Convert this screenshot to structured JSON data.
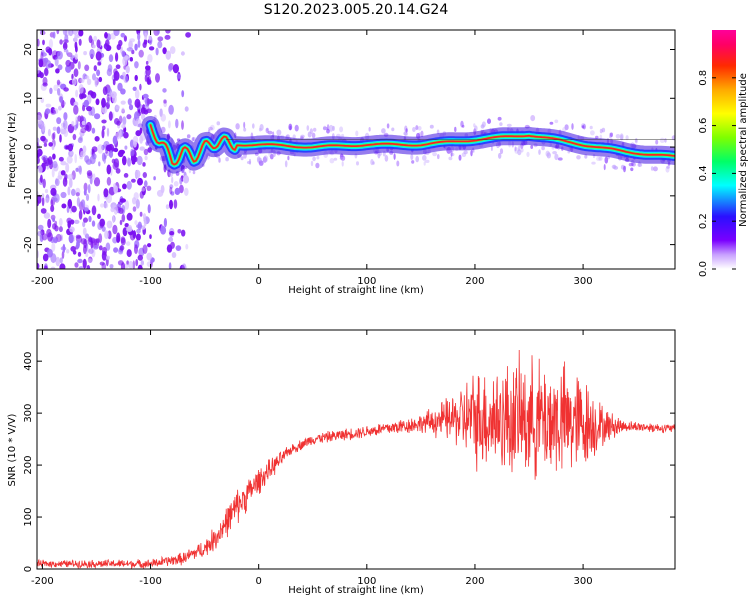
{
  "title": "S120.2023.005.20.14.G24",
  "chart_data": [
    {
      "type": "heatmap",
      "xlabel": "Height of straight line (km)",
      "ylabel": "Frequency (Hz)",
      "xlim": [
        -205,
        385
      ],
      "ylim": [
        -25,
        24
      ],
      "xticks": [
        -200,
        -100,
        0,
        100,
        200,
        300
      ],
      "yticks": [
        -20,
        -10,
        0,
        10,
        20
      ],
      "colorbar": {
        "label": "Normalized spectral amplitude",
        "ticks": [
          "0.0",
          "0.2",
          "0.4",
          "0.6",
          "0.8"
        ],
        "range": [
          0,
          1
        ],
        "colormap": "rainbow (white-purple-blue-cyan-green-yellow-red-magenta)"
      },
      "ridge": {
        "x": [
          -100,
          -90,
          -80,
          -70,
          -60,
          -50,
          -40,
          -30,
          -20,
          0,
          50,
          100,
          150,
          200,
          250,
          300,
          340,
          385
        ],
        "y": [
          4,
          1,
          -3,
          -1,
          -2,
          0,
          1,
          1,
          0.5,
          0.5,
          0,
          0.5,
          0.5,
          1.5,
          2.5,
          0.5,
          -1,
          -2
        ]
      },
      "noise_region_x": [
        -205,
        -75
      ]
    },
    {
      "type": "line",
      "xlabel": "Height of straight line (km)",
      "ylabel": "SNR (10 * V/V)",
      "xlim": [
        -205,
        385
      ],
      "ylim": [
        0,
        460
      ],
      "xticks": [
        -200,
        -100,
        0,
        100,
        200,
        300
      ],
      "yticks": [
        0,
        100,
        200,
        300,
        400
      ],
      "color": "#f03232",
      "envelope": {
        "x": [
          -205,
          -100,
          -70,
          -50,
          -40,
          -30,
          -20,
          0,
          20,
          30,
          50,
          100,
          150,
          180,
          200,
          230,
          250,
          280,
          300,
          320,
          340,
          385
        ],
        "mean": [
          10,
          10,
          20,
          40,
          60,
          90,
          120,
          170,
          210,
          230,
          250,
          265,
          280,
          290,
          290,
          290,
          290,
          285,
          280,
          275,
          275,
          270
        ],
        "spread": [
          8,
          10,
          14,
          20,
          28,
          35,
          40,
          30,
          18,
          12,
          12,
          14,
          20,
          55,
          110,
          130,
          135,
          130,
          110,
          40,
          12,
          10
        ]
      }
    }
  ]
}
